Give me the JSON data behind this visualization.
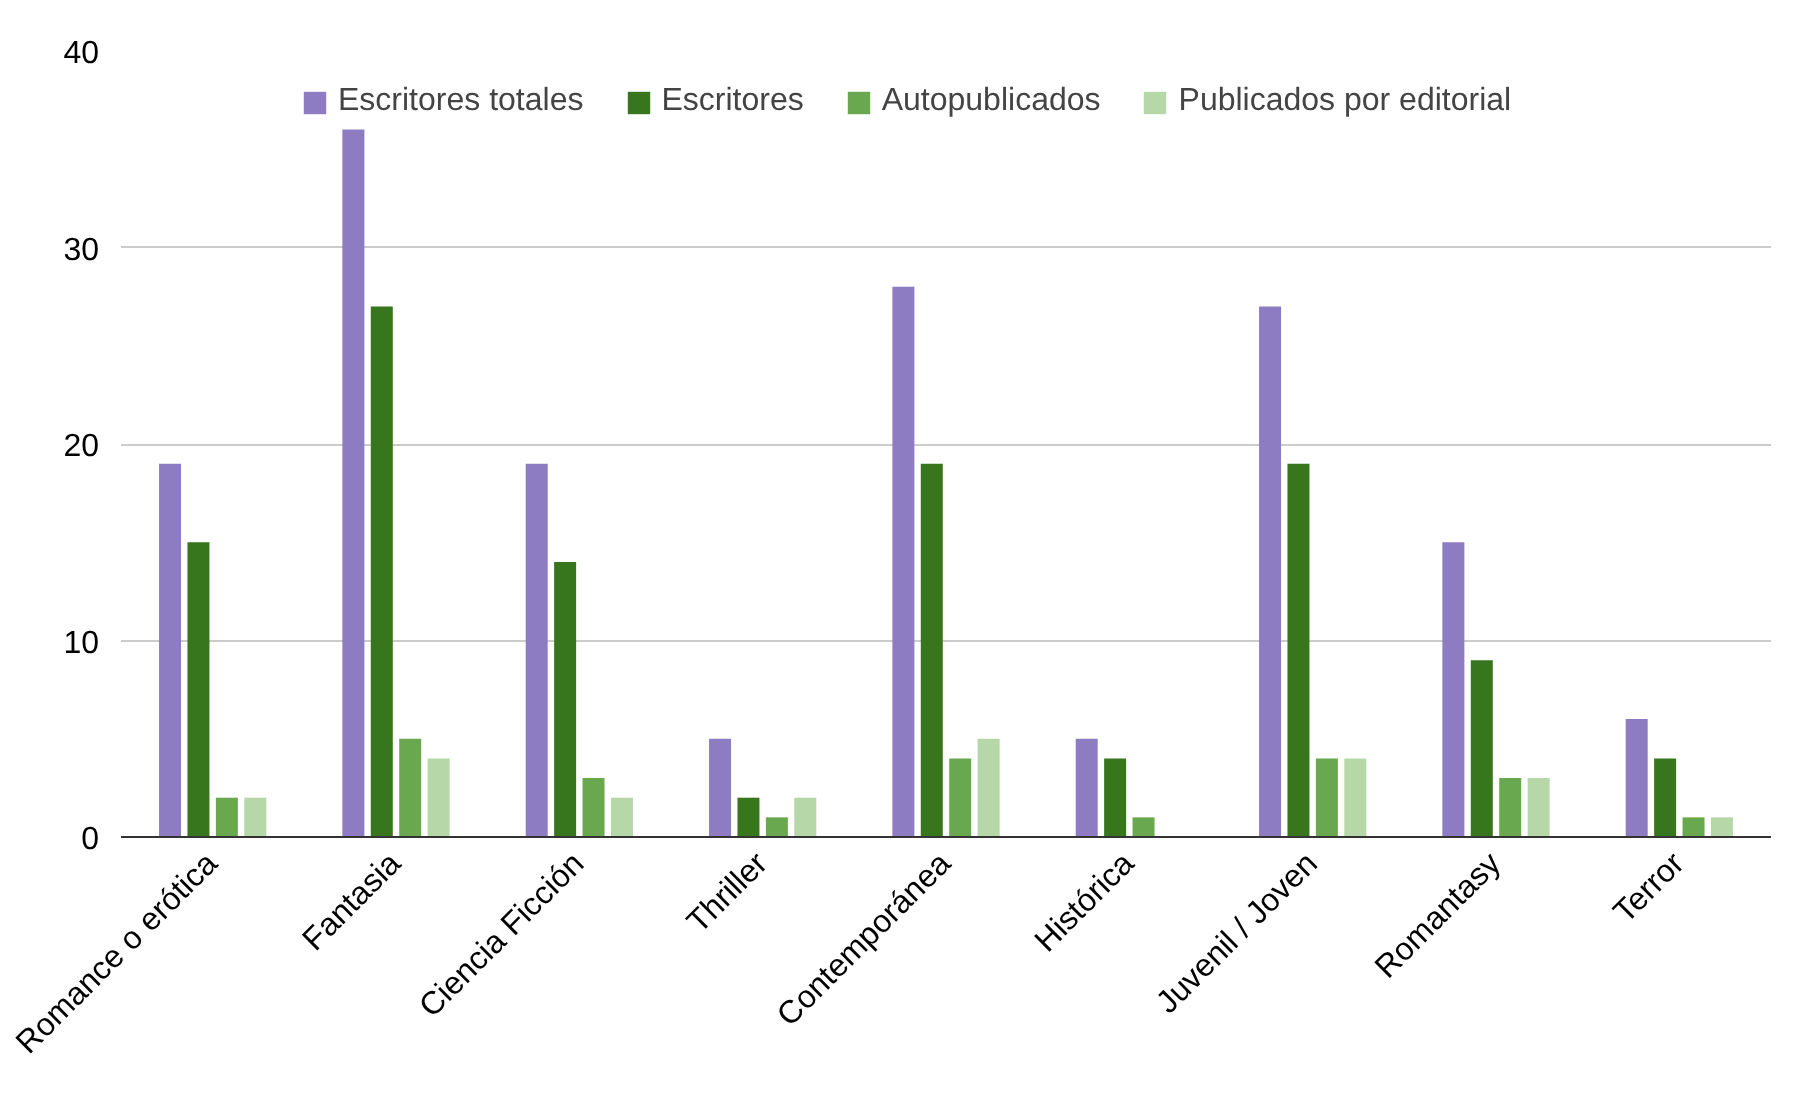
{
  "chart_data": {
    "type": "bar",
    "categories": [
      "Romance o erótica",
      "Fantasia",
      "Ciencia Ficción",
      "Thriller",
      "Contemporánea",
      "Histórica",
      "Juvenil / Joven",
      "Romantasy",
      "Terror"
    ],
    "series": [
      {
        "name": "Escritores totales",
        "color": "#8e7cc3",
        "values": [
          19,
          36,
          19,
          5,
          28,
          5,
          27,
          15,
          6
        ]
      },
      {
        "name": "Escritores",
        "color": "#38761d",
        "values": [
          15,
          27,
          14,
          2,
          19,
          4,
          19,
          9,
          4
        ]
      },
      {
        "name": "Autopublicados",
        "color": "#6aa84f",
        "values": [
          2,
          5,
          3,
          1,
          4,
          1,
          4,
          3,
          1
        ]
      },
      {
        "name": "Publicados por editorial",
        "color": "#b6d7a8",
        "values": [
          2,
          4,
          2,
          2,
          5,
          0,
          4,
          3,
          1
        ]
      }
    ],
    "ylim": [
      0,
      40
    ],
    "yticks": [
      0,
      10,
      20,
      30,
      40
    ],
    "grid": "y",
    "legend": "top"
  }
}
